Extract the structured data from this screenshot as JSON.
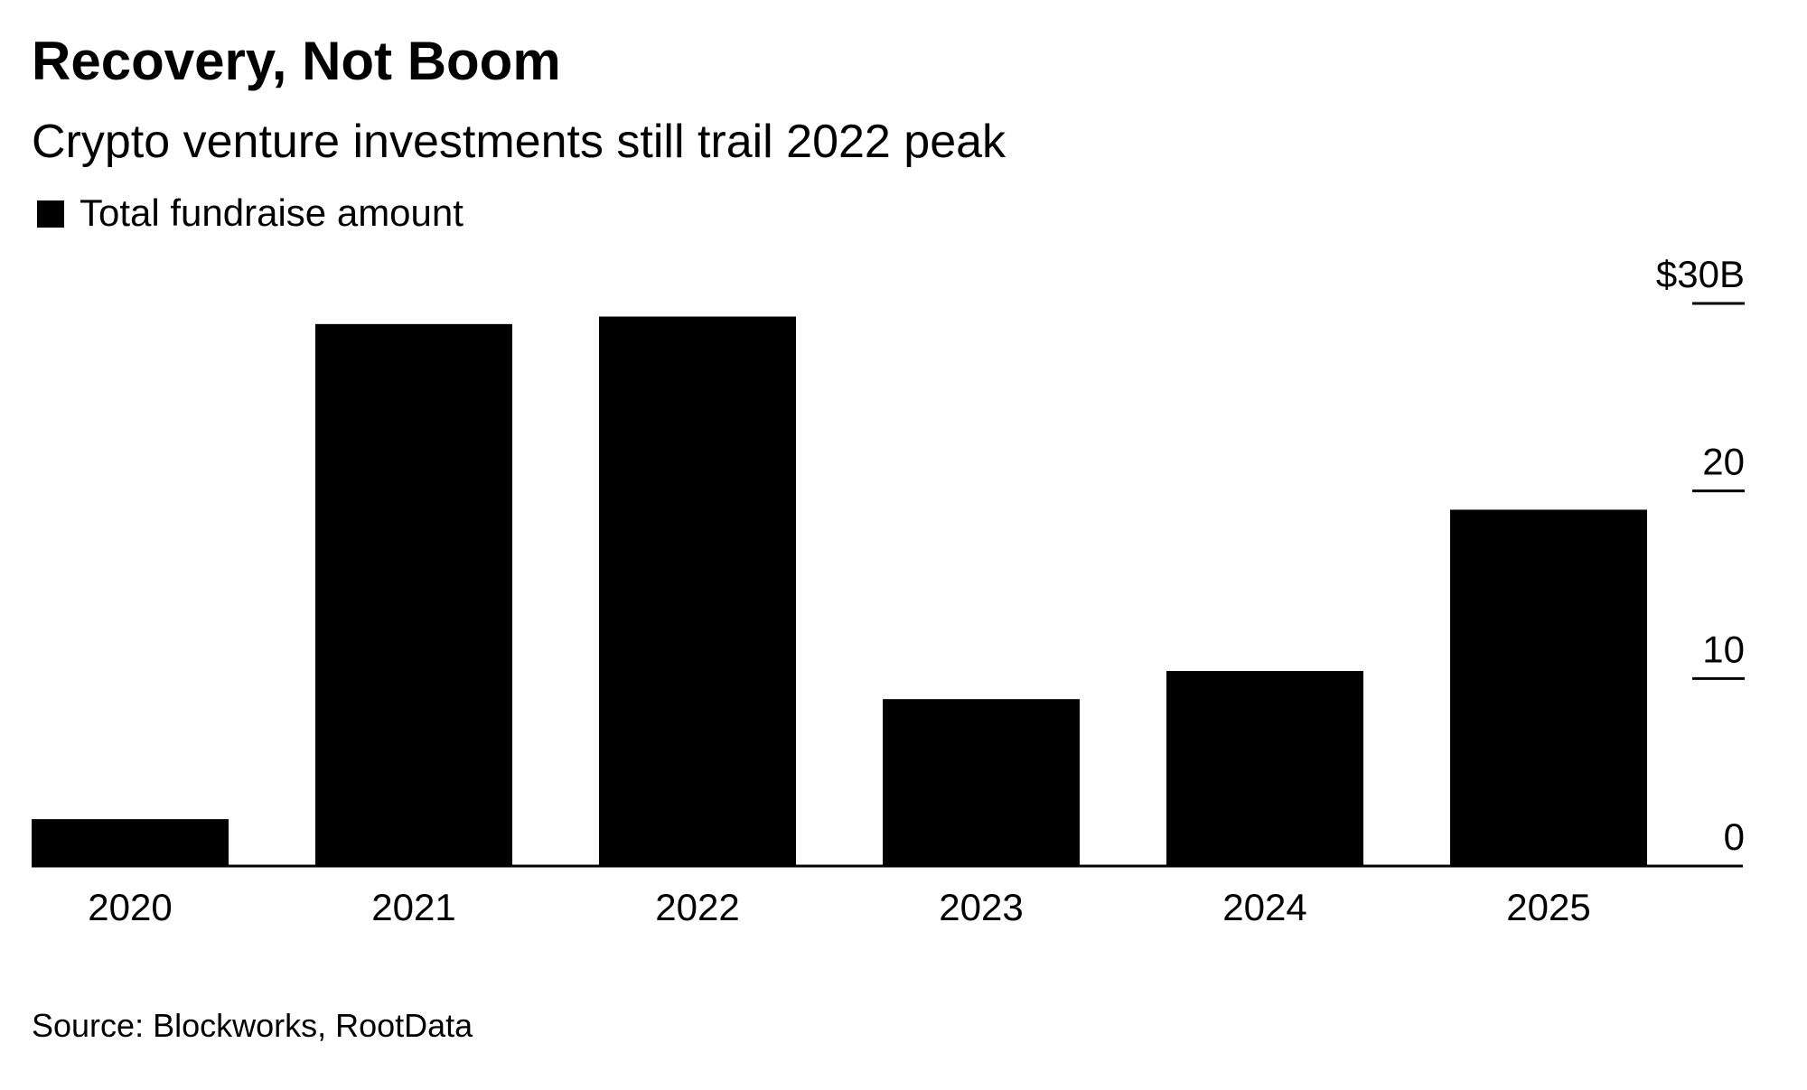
{
  "chart_data": {
    "type": "bar",
    "title": "Recovery, Not Boom",
    "subtitle": "Crypto venture investments still trail 2022 peak",
    "legend": [
      {
        "label": "Total fundraise amount",
        "color": "#000000"
      }
    ],
    "legend_placement": "top-left",
    "categories": [
      "2020",
      "2021",
      "2022",
      "2023",
      "2024",
      "2025"
    ],
    "series": [
      {
        "name": "Total fundraise amount",
        "values": [
          2.5,
          28.9,
          29.3,
          8.9,
          10.4,
          19.0
        ]
      }
    ],
    "xlabel": "",
    "ylabel": "",
    "ylim": [
      0,
      30
    ],
    "yticks": [
      0,
      10,
      20,
      30
    ],
    "ytick_labels": [
      "0",
      "10",
      "20",
      "$30B"
    ],
    "y_axis_side": "right",
    "grid": false,
    "source": "Source: Blockworks, RootData",
    "bar_color": "#000000"
  }
}
